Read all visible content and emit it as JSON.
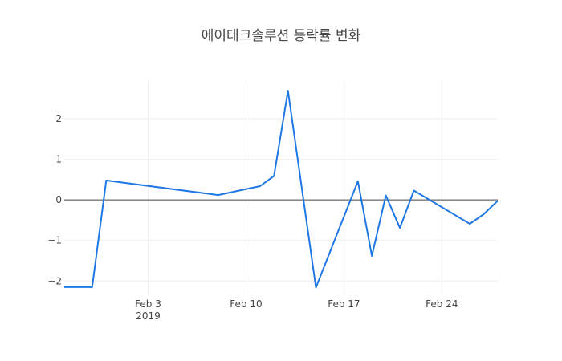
{
  "chart_data": {
    "type": "line",
    "title": "에이테크솔루션 등락률 변화",
    "xlabel": "",
    "ylabel": "",
    "x_axis_type": "date",
    "xlim": [
      "2019-01-28",
      "2019-02-28"
    ],
    "ylim": [
      -2.35,
      2.95
    ],
    "x_ticks": [
      {
        "value": "2019-02-03",
        "label": "Feb 3",
        "sublabel": "2019"
      },
      {
        "value": "2019-02-10",
        "label": "Feb 10",
        "sublabel": ""
      },
      {
        "value": "2019-02-17",
        "label": "Feb 17",
        "sublabel": ""
      },
      {
        "value": "2019-02-24",
        "label": "Feb 24",
        "sublabel": ""
      }
    ],
    "y_ticks": [
      {
        "value": 2,
        "label": "2"
      },
      {
        "value": 1,
        "label": "1"
      },
      {
        "value": 0,
        "label": "0"
      },
      {
        "value": -1,
        "label": "−1"
      },
      {
        "value": -2,
        "label": "−2"
      }
    ],
    "grid": true,
    "legend": "none",
    "series": [
      {
        "color": "#1f77e4",
        "x": [
          "2019-01-28",
          "2019-01-30",
          "2019-01-31",
          "2019-02-08",
          "2019-02-11",
          "2019-02-12",
          "2019-02-13",
          "2019-02-15",
          "2019-02-18",
          "2019-02-19",
          "2019-02-20",
          "2019-02-21",
          "2019-02-22",
          "2019-02-26",
          "2019-02-27",
          "2019-02-28"
        ],
        "values": [
          -2.15,
          -2.15,
          0.48,
          0.12,
          0.34,
          0.59,
          2.69,
          -2.16,
          0.46,
          -1.38,
          0.11,
          -0.69,
          0.23,
          -0.59,
          -0.35,
          -0.02
        ]
      }
    ]
  }
}
